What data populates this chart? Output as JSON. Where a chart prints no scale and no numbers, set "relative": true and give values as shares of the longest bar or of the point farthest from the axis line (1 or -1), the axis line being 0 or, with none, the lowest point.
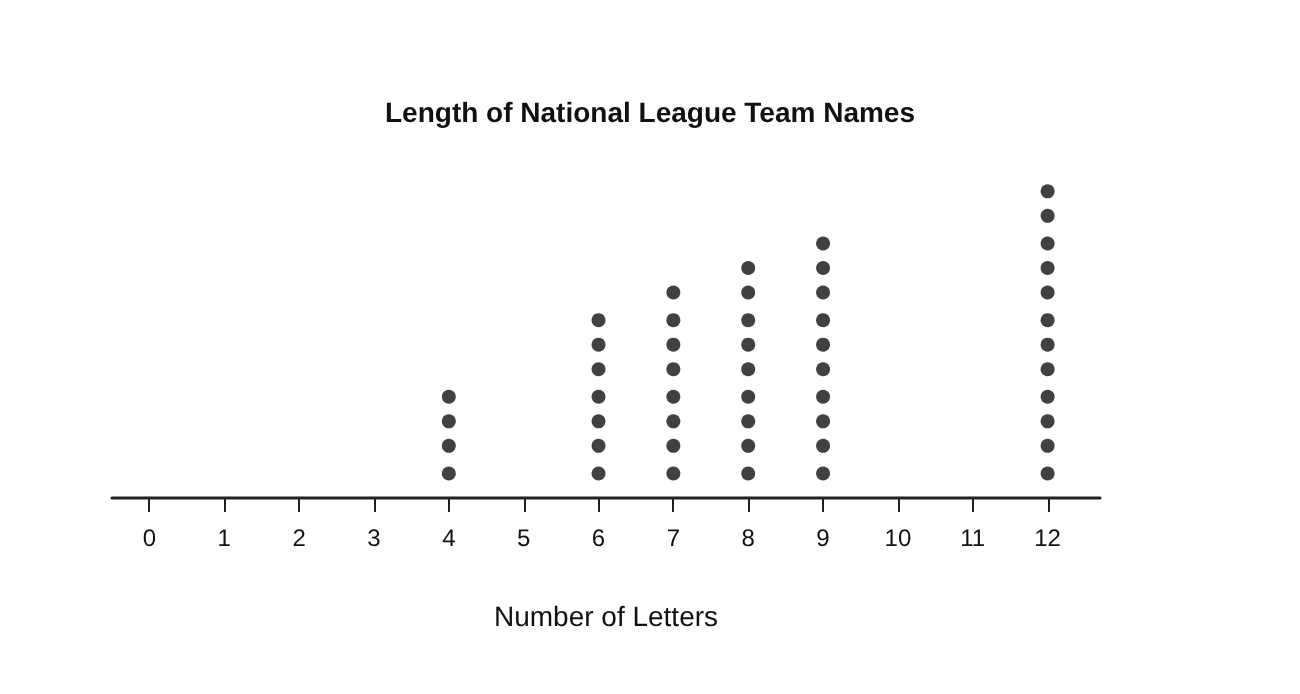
{
  "chart_data": {
    "type": "scatter",
    "title": "Length of National League Team Names",
    "xlabel": "Number of Letters",
    "relative": true,
    "x": [
      4,
      4,
      4,
      4,
      6,
      6,
      6,
      6,
      6,
      6,
      6,
      7,
      7,
      7,
      7,
      7,
      7,
      7,
      7,
      8,
      8,
      8,
      8,
      8,
      8,
      8,
      8,
      8,
      9,
      9,
      9,
      9,
      9,
      9,
      9,
      9,
      9,
      9,
      12,
      12,
      12,
      12,
      12,
      12,
      12,
      12,
      12,
      12,
      12,
      12
    ],
    "values": [
      0.08,
      0.17,
      0.25,
      0.33,
      0.08,
      0.17,
      0.25,
      0.33,
      0.42,
      0.5,
      0.58,
      0.08,
      0.17,
      0.25,
      0.33,
      0.42,
      0.5,
      0.58,
      0.67,
      0.08,
      0.17,
      0.25,
      0.33,
      0.42,
      0.5,
      0.58,
      0.67,
      0.75,
      0.08,
      0.17,
      0.25,
      0.33,
      0.42,
      0.5,
      0.58,
      0.67,
      0.75,
      0.83,
      0.08,
      0.17,
      0.25,
      0.33,
      0.42,
      0.5,
      0.58,
      0.67,
      0.75,
      0.83,
      0.92,
      1
    ],
    "color": "#111111",
    "marker": "circle",
    "xlim": [
      -0.5,
      12.7
    ],
    "xticks": [
      0,
      1,
      2,
      3,
      4,
      5,
      6,
      7,
      8,
      9,
      10,
      11,
      12
    ],
    "tick_labels": "x",
    "grid": false
  }
}
